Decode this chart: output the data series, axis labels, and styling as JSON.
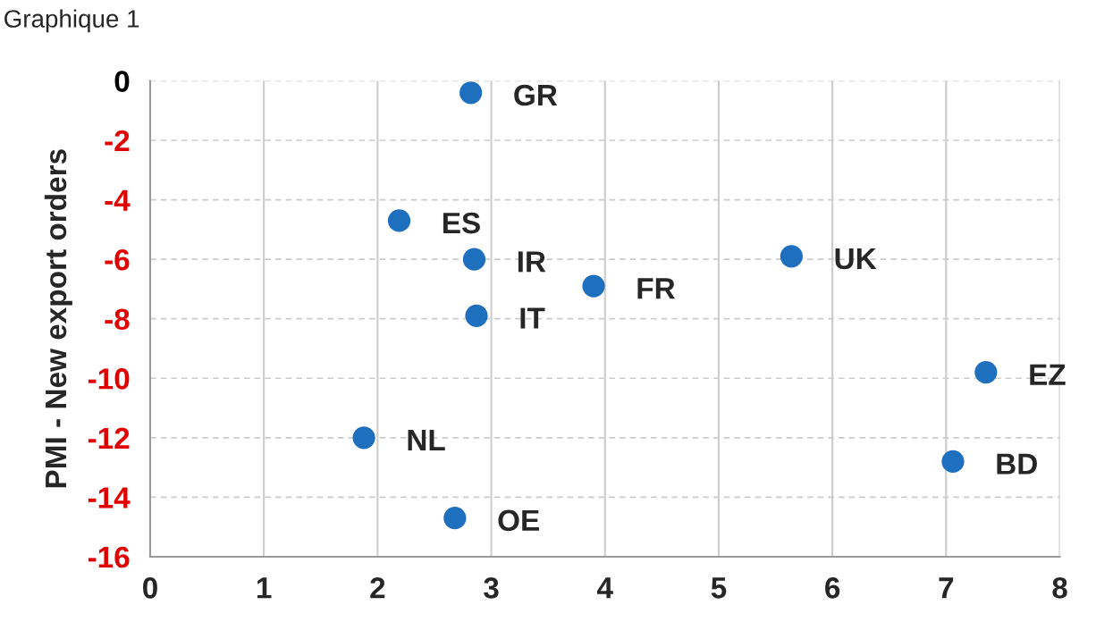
{
  "chart_data": {
    "type": "scatter",
    "title": "Graphique 1",
    "ylabel": "PMI - New export orders",
    "x": [
      2.82,
      2.19,
      2.85,
      2.87,
      3.9,
      5.64,
      7.35,
      7.06,
      1.88,
      2.68
    ],
    "series": [
      {
        "color": "#1f6fbf",
        "values": [
          -0.4,
          -4.7,
          -6.0,
          -7.9,
          -6.9,
          -5.9,
          -9.8,
          -12.8,
          -12.0,
          -14.7
        ]
      }
    ],
    "annotations": [
      {
        "text": "GR",
        "x": 2.82,
        "y": -0.4
      },
      {
        "text": "ES",
        "x": 2.19,
        "y": -4.7
      },
      {
        "text": "IR",
        "x": 2.85,
        "y": -6.0
      },
      {
        "text": "IT",
        "x": 2.87,
        "y": -7.9
      },
      {
        "text": "FR",
        "x": 3.9,
        "y": -6.9
      },
      {
        "text": "UK",
        "x": 5.64,
        "y": -5.9
      },
      {
        "text": "EZ",
        "x": 7.35,
        "y": -9.8
      },
      {
        "text": "BD",
        "x": 7.06,
        "y": -12.8
      },
      {
        "text": "NL",
        "x": 1.88,
        "y": -12.0
      },
      {
        "text": "OE",
        "x": 2.68,
        "y": -14.7
      }
    ],
    "xlim": [
      0,
      8
    ],
    "xticks": [
      0,
      1,
      2,
      3,
      4,
      5,
      6,
      7,
      8
    ],
    "ylim": [
      -16,
      0
    ],
    "yticks": [
      -16,
      -14,
      -12,
      -10,
      -8,
      -6,
      -4,
      -2,
      0
    ],
    "grid": true,
    "marker": "circle"
  }
}
